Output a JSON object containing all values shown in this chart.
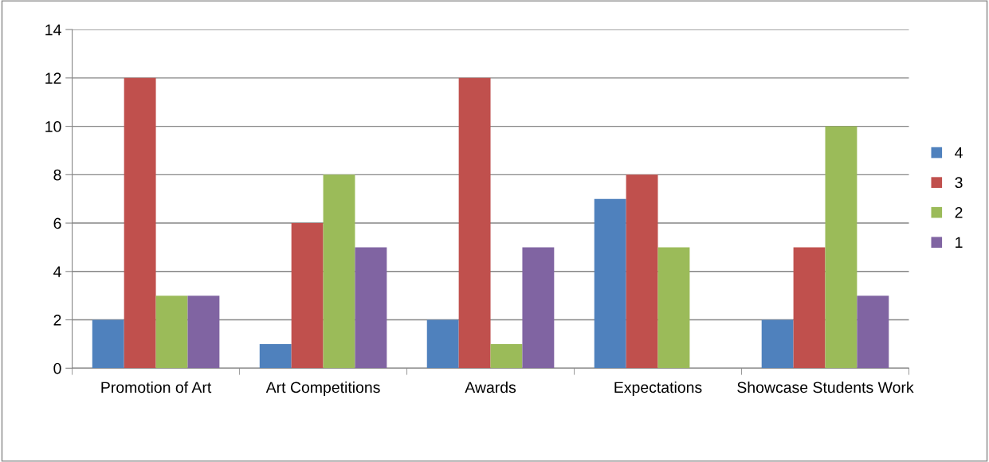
{
  "chart_data": {
    "type": "bar",
    "categories": [
      "Promotion of Art",
      "Art Competitions",
      "Awards",
      "Expectations",
      "Showcase Students Work"
    ],
    "series": [
      {
        "name": "4",
        "color": "#4f81bd",
        "values": [
          2,
          1,
          2,
          7,
          2
        ]
      },
      {
        "name": "3",
        "color": "#c0504d",
        "values": [
          12,
          6,
          12,
          8,
          5
        ]
      },
      {
        "name": "2",
        "color": "#9bbb59",
        "values": [
          3,
          8,
          1,
          5,
          10
        ]
      },
      {
        "name": "1",
        "color": "#8064a2",
        "values": [
          3,
          5,
          5,
          0,
          3
        ]
      }
    ],
    "ylim": [
      0,
      14
    ],
    "yticks": [
      0,
      2,
      4,
      6,
      8,
      10,
      12,
      14
    ],
    "grid": "y",
    "legend": "right"
  }
}
